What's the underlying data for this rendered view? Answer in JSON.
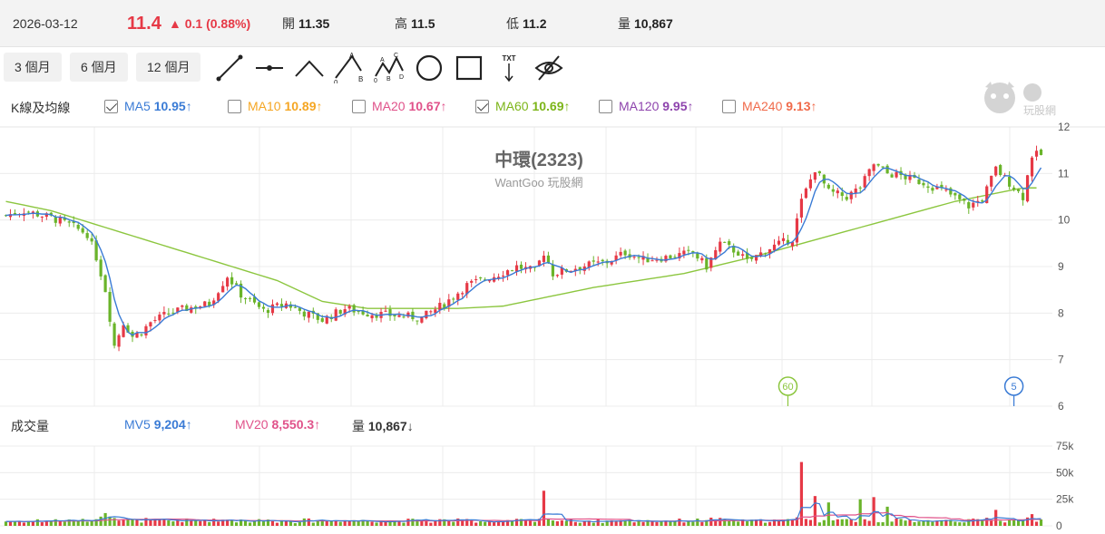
{
  "quote": {
    "date": "2026-03-12",
    "price": "11.4",
    "change": "▲ 0.1 (0.88%)",
    "open_label": "開",
    "open": "11.35",
    "high_label": "高",
    "high": "11.5",
    "low_label": "低",
    "low": "11.2",
    "volume_label": "量",
    "volume": "10,867"
  },
  "toolbar": {
    "periods": [
      "3 個月",
      "6 個月",
      "12 個月"
    ],
    "tools": [
      "line-tool-icon",
      "horizontal-line-tool-icon",
      "angle-tool-icon",
      "abc-pattern-tool-icon",
      "abcd-pattern-tool-icon",
      "circle-tool-icon",
      "rectangle-tool-icon",
      "text-tool-icon",
      "hide-drawings-icon"
    ],
    "abc_letters": [
      "A",
      "B",
      "0"
    ],
    "abcd_letters": [
      "A",
      "B",
      "C",
      "D",
      "0"
    ],
    "txt_label": "TXT"
  },
  "ma_legend": {
    "label": "K線及均線",
    "items": [
      {
        "name": "MA5",
        "value": "10.95",
        "arrow": "↑",
        "checked": true,
        "color": "#3a7bd5"
      },
      {
        "name": "MA10",
        "value": "10.89",
        "arrow": "↑",
        "checked": false,
        "color": "#f5a623"
      },
      {
        "name": "MA20",
        "value": "10.67",
        "arrow": "↑",
        "checked": false,
        "color": "#e0528a"
      },
      {
        "name": "MA60",
        "value": "10.69",
        "arrow": "↑",
        "checked": true,
        "color": "#7cb518"
      },
      {
        "name": "MA120",
        "value": "9.95",
        "arrow": "↑",
        "checked": false,
        "color": "#8e44ad"
      },
      {
        "name": "MA240",
        "value": "9.13",
        "arrow": "↑",
        "checked": false,
        "color": "#f06a4a"
      }
    ]
  },
  "volume_legend": {
    "label": "成交量",
    "mv5_name": "MV5",
    "mv5_value": "9,204",
    "mv5_arrow": "↑",
    "mv20_name": "MV20",
    "mv20_value": "8,550.3",
    "mv20_arrow": "↑",
    "vol_name": "量",
    "vol_value": "10,867",
    "vol_arrow": "↓"
  },
  "watermark": {
    "title": "中環(2323)",
    "subtitle": "WantGoo 玩股網",
    "logo_text": "玩股網"
  },
  "colors": {
    "up": "#e63946",
    "down": "#6ab42a",
    "ma5": "#3a7bd5",
    "ma60": "#8cc63f",
    "mv5": "#3a7bd5",
    "mv20": "#e0528a",
    "grid": "#ececec"
  },
  "chart_data": [
    {
      "type": "candlestick",
      "title": "中環(2323)",
      "y_ticks": [
        "6",
        "7",
        "8",
        "9",
        "10",
        "11",
        "12"
      ],
      "ylim": [
        6,
        12
      ],
      "ma_markers": [
        {
          "label": "60",
          "bar_index": 173
        },
        {
          "label": "5",
          "bar_index": 223
        }
      ],
      "anchors": [
        [
          0,
          10.1
        ],
        [
          4,
          10.2
        ],
        [
          10,
          10.05
        ],
        [
          14,
          9.9
        ],
        [
          18,
          9.7
        ],
        [
          20,
          9.2
        ],
        [
          22,
          8.5
        ],
        [
          24,
          7.3
        ],
        [
          26,
          7.8
        ],
        [
          28,
          7.5
        ],
        [
          30,
          7.6
        ],
        [
          32,
          7.8
        ],
        [
          36,
          8.0
        ],
        [
          40,
          8.1
        ],
        [
          45,
          8.2
        ],
        [
          49,
          8.8
        ],
        [
          52,
          8.4
        ],
        [
          57,
          8.05
        ],
        [
          62,
          8.2
        ],
        [
          66,
          8.0
        ],
        [
          70,
          7.85
        ],
        [
          75,
          8.1
        ],
        [
          80,
          8.0
        ],
        [
          86,
          7.95
        ],
        [
          92,
          7.9
        ],
        [
          97,
          8.2
        ],
        [
          102,
          8.6
        ],
        [
          108,
          8.8
        ],
        [
          113,
          9.0
        ],
        [
          117,
          8.9
        ],
        [
          119,
          9.3
        ],
        [
          121,
          8.85
        ],
        [
          127,
          9.0
        ],
        [
          133,
          9.1
        ],
        [
          137,
          9.3
        ],
        [
          141,
          9.15
        ],
        [
          146,
          9.2
        ],
        [
          152,
          9.3
        ],
        [
          155,
          9.0
        ],
        [
          158,
          9.5
        ],
        [
          162,
          9.3
        ],
        [
          164,
          9.1
        ],
        [
          169,
          9.4
        ],
        [
          174,
          9.6
        ],
        [
          176,
          10.4
        ],
        [
          179,
          11.1
        ],
        [
          182,
          10.6
        ],
        [
          186,
          10.5
        ],
        [
          189,
          10.7
        ],
        [
          192,
          11.2
        ],
        [
          195,
          11.0
        ],
        [
          198,
          10.95
        ],
        [
          203,
          10.8
        ],
        [
          208,
          10.6
        ],
        [
          213,
          10.3
        ],
        [
          216,
          10.45
        ],
        [
          219,
          11.1
        ],
        [
          222,
          10.8
        ],
        [
          225,
          10.5
        ],
        [
          227,
          11.4
        ]
      ],
      "ma60_anchors": [
        [
          0,
          10.4
        ],
        [
          10,
          10.2
        ],
        [
          20,
          9.9
        ],
        [
          40,
          9.3
        ],
        [
          60,
          8.7
        ],
        [
          70,
          8.25
        ],
        [
          80,
          8.1
        ],
        [
          100,
          8.1
        ],
        [
          110,
          8.15
        ],
        [
          130,
          8.55
        ],
        [
          150,
          8.85
        ],
        [
          165,
          9.2
        ],
        [
          180,
          9.6
        ],
        [
          195,
          10.0
        ],
        [
          210,
          10.4
        ],
        [
          225,
          10.69
        ]
      ]
    },
    {
      "type": "bar",
      "title": "成交量",
      "y_ticks": [
        "0",
        "25k",
        "50k",
        "75k"
      ],
      "ylim": [
        0,
        75000
      ],
      "spikes": [
        [
          22,
          12000
        ],
        [
          119,
          33000
        ],
        [
          176,
          60000
        ],
        [
          179,
          28000
        ],
        [
          182,
          22000
        ],
        [
          189,
          25000
        ],
        [
          192,
          27000
        ],
        [
          195,
          18000
        ],
        [
          219,
          15000
        ],
        [
          227,
          11000
        ]
      ]
    }
  ]
}
